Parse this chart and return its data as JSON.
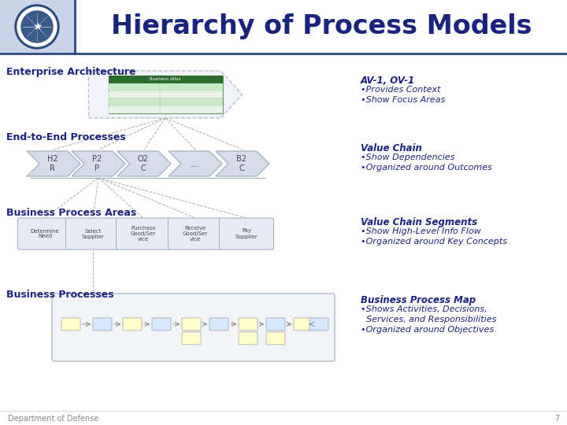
{
  "title": "Hierarchy of Process Models",
  "title_color": "#1a237e",
  "header_bg": "#c8d4e8",
  "bg_color": "#ffffff",
  "footer_text": "Department of Defense",
  "footer_page": "7",
  "section_labels": [
    "Enterprise Architecture",
    "End-to-End Processes",
    "Business Process Areas",
    "Business Processes"
  ],
  "section_label_color": "#1a237e",
  "right_labels": [
    [
      "AV-1, OV-1",
      "•Provides Context",
      "•Show Focus Areas"
    ],
    [
      "Value Chain",
      "•Show Dependencies",
      "•Organized around Outcomes"
    ],
    [
      "Value Chain Segments",
      "•Show High-Level Info Flow",
      "•Organized around Key Concepts"
    ],
    [
      "Business Process Map",
      "•Shows Activities, Decisions,",
      "  Services, and Responsibilities",
      "•Organized around Objectives"
    ]
  ],
  "right_label_color": "#1a237e",
  "chevron_color": "#d8dce8",
  "chevron_edge": "#9aabbf",
  "chevron_labels": [
    "H2\nR",
    "P2\nP",
    "O2\nC",
    "...",
    "B2\nC"
  ],
  "bpa_labels": [
    "Determine\nNeed",
    "Select\nSupplier",
    "Purchase\nGood/Ser\nvice",
    "Receive\nGood/Ser\nvice",
    "Pay\nSupplier"
  ],
  "line_color": "#999999",
  "seal_ring_color": "#2a4a7a",
  "seal_bg": "#c8d4e8"
}
